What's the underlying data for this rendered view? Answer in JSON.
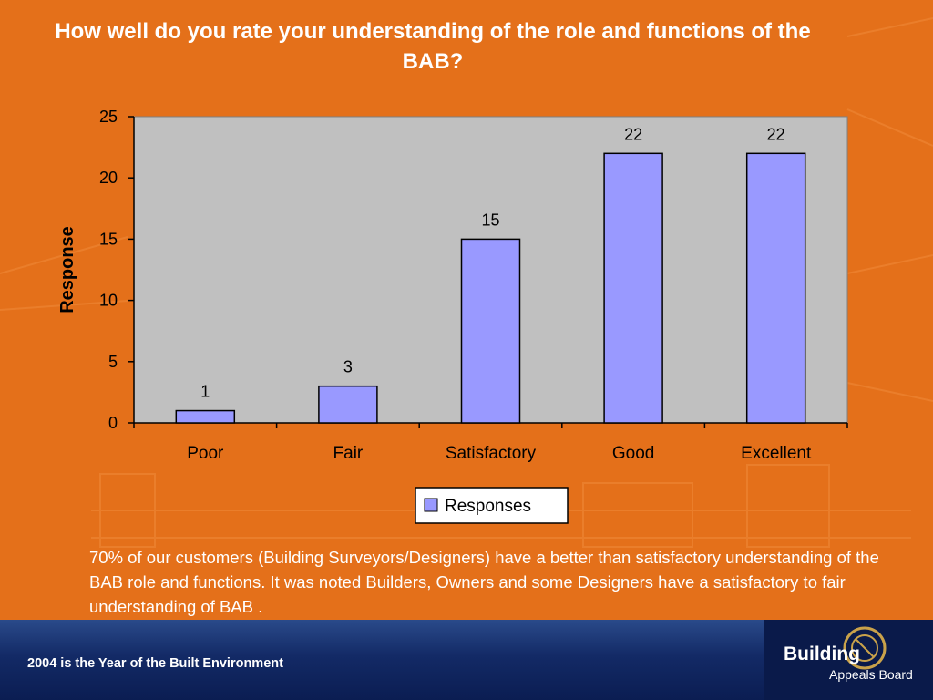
{
  "slide": {
    "title": "How well do you rate your understanding of the role and functions of the BAB?",
    "body": "70% of our customers (Building Surveyors/Designers) have a better than satisfactory understanding of the BAB role and functions. It was noted Builders, Owners and some Designers have a satisfactory to fair understanding of BAB .",
    "footer": "2004 is the Year of the Built Environment",
    "logo": {
      "line1": "Building",
      "line2": "Appeals Board"
    }
  },
  "colors": {
    "background": "#E4701A",
    "plot_area": "#C0C0C0",
    "bar_fill": "#9999FF",
    "footer": "#132a66"
  },
  "chart_data": {
    "type": "bar",
    "title": "",
    "xlabel": "",
    "ylabel": "Response",
    "categories": [
      "Poor",
      "Fair",
      "Satisfactory",
      "Good",
      "Excellent"
    ],
    "series": [
      {
        "name": "Responses",
        "values": [
          1,
          3,
          15,
          22,
          22
        ]
      }
    ],
    "ylim": [
      0,
      25
    ],
    "yticks": [
      0,
      5,
      10,
      15,
      20,
      25
    ],
    "data_labels": true,
    "grid": false,
    "legend": "bottom-center"
  }
}
